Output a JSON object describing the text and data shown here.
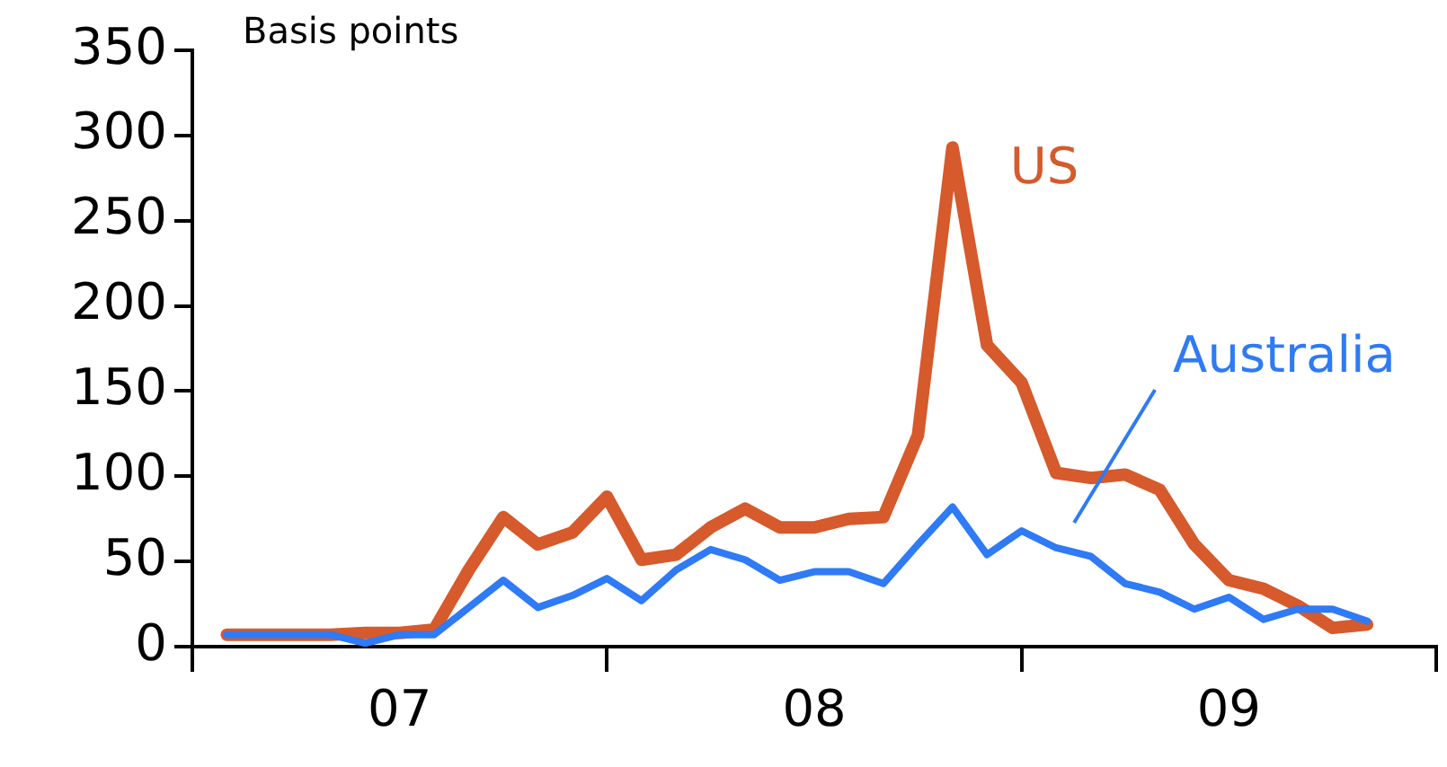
{
  "chart_data": {
    "type": "line",
    "ylabel": "Basis points",
    "x": [
      "2007-02",
      "2007-03",
      "2007-04",
      "2007-05",
      "2007-06",
      "2007-07",
      "2007-08",
      "2007-09",
      "2007-10",
      "2007-11",
      "2007-12",
      "2008-01",
      "2008-02",
      "2008-03",
      "2008-04",
      "2008-05",
      "2008-06",
      "2008-07",
      "2008-08",
      "2008-09",
      "2008-10",
      "2008-11",
      "2008-12",
      "2009-01",
      "2009-02",
      "2009-03",
      "2009-04",
      "2009-05",
      "2009-06",
      "2009-07",
      "2009-08",
      "2009-09",
      "2009-10",
      "2009-11"
    ],
    "series": [
      {
        "name": "US",
        "color": "#d65a2c",
        "values": [
          7,
          7,
          7,
          7,
          8,
          8,
          10,
          45,
          76,
          60,
          67,
          88,
          51,
          54,
          70,
          81,
          70,
          70,
          75,
          76,
          124,
          293,
          177,
          155,
          102,
          99,
          101,
          92,
          60,
          39,
          34,
          24,
          11,
          13
        ]
      },
      {
        "name": "Australia",
        "color": "#2f7af5",
        "values": [
          7,
          7,
          7,
          7,
          2,
          7,
          7,
          23,
          39,
          23,
          30,
          40,
          27,
          45,
          57,
          51,
          39,
          44,
          44,
          37,
          60,
          82,
          54,
          68,
          58,
          53,
          37,
          32,
          22,
          29,
          16,
          22,
          22,
          15
        ]
      }
    ],
    "xlim": [
      "2007-01",
      "2010-01"
    ],
    "xticks": [
      {
        "value": "2007-01",
        "label": null
      },
      {
        "value": "2007-07",
        "label": "07"
      },
      {
        "value": "2008-01",
        "label": null
      },
      {
        "value": "2008-07",
        "label": "08"
      },
      {
        "value": "2009-01",
        "label": null
      },
      {
        "value": "2009-07",
        "label": "09"
      },
      {
        "value": "2010-01",
        "label": null
      }
    ],
    "ylim": [
      0,
      350
    ],
    "yticks": [
      0,
      50,
      100,
      150,
      200,
      250,
      300,
      350
    ],
    "grid": false,
    "marker": "none"
  }
}
